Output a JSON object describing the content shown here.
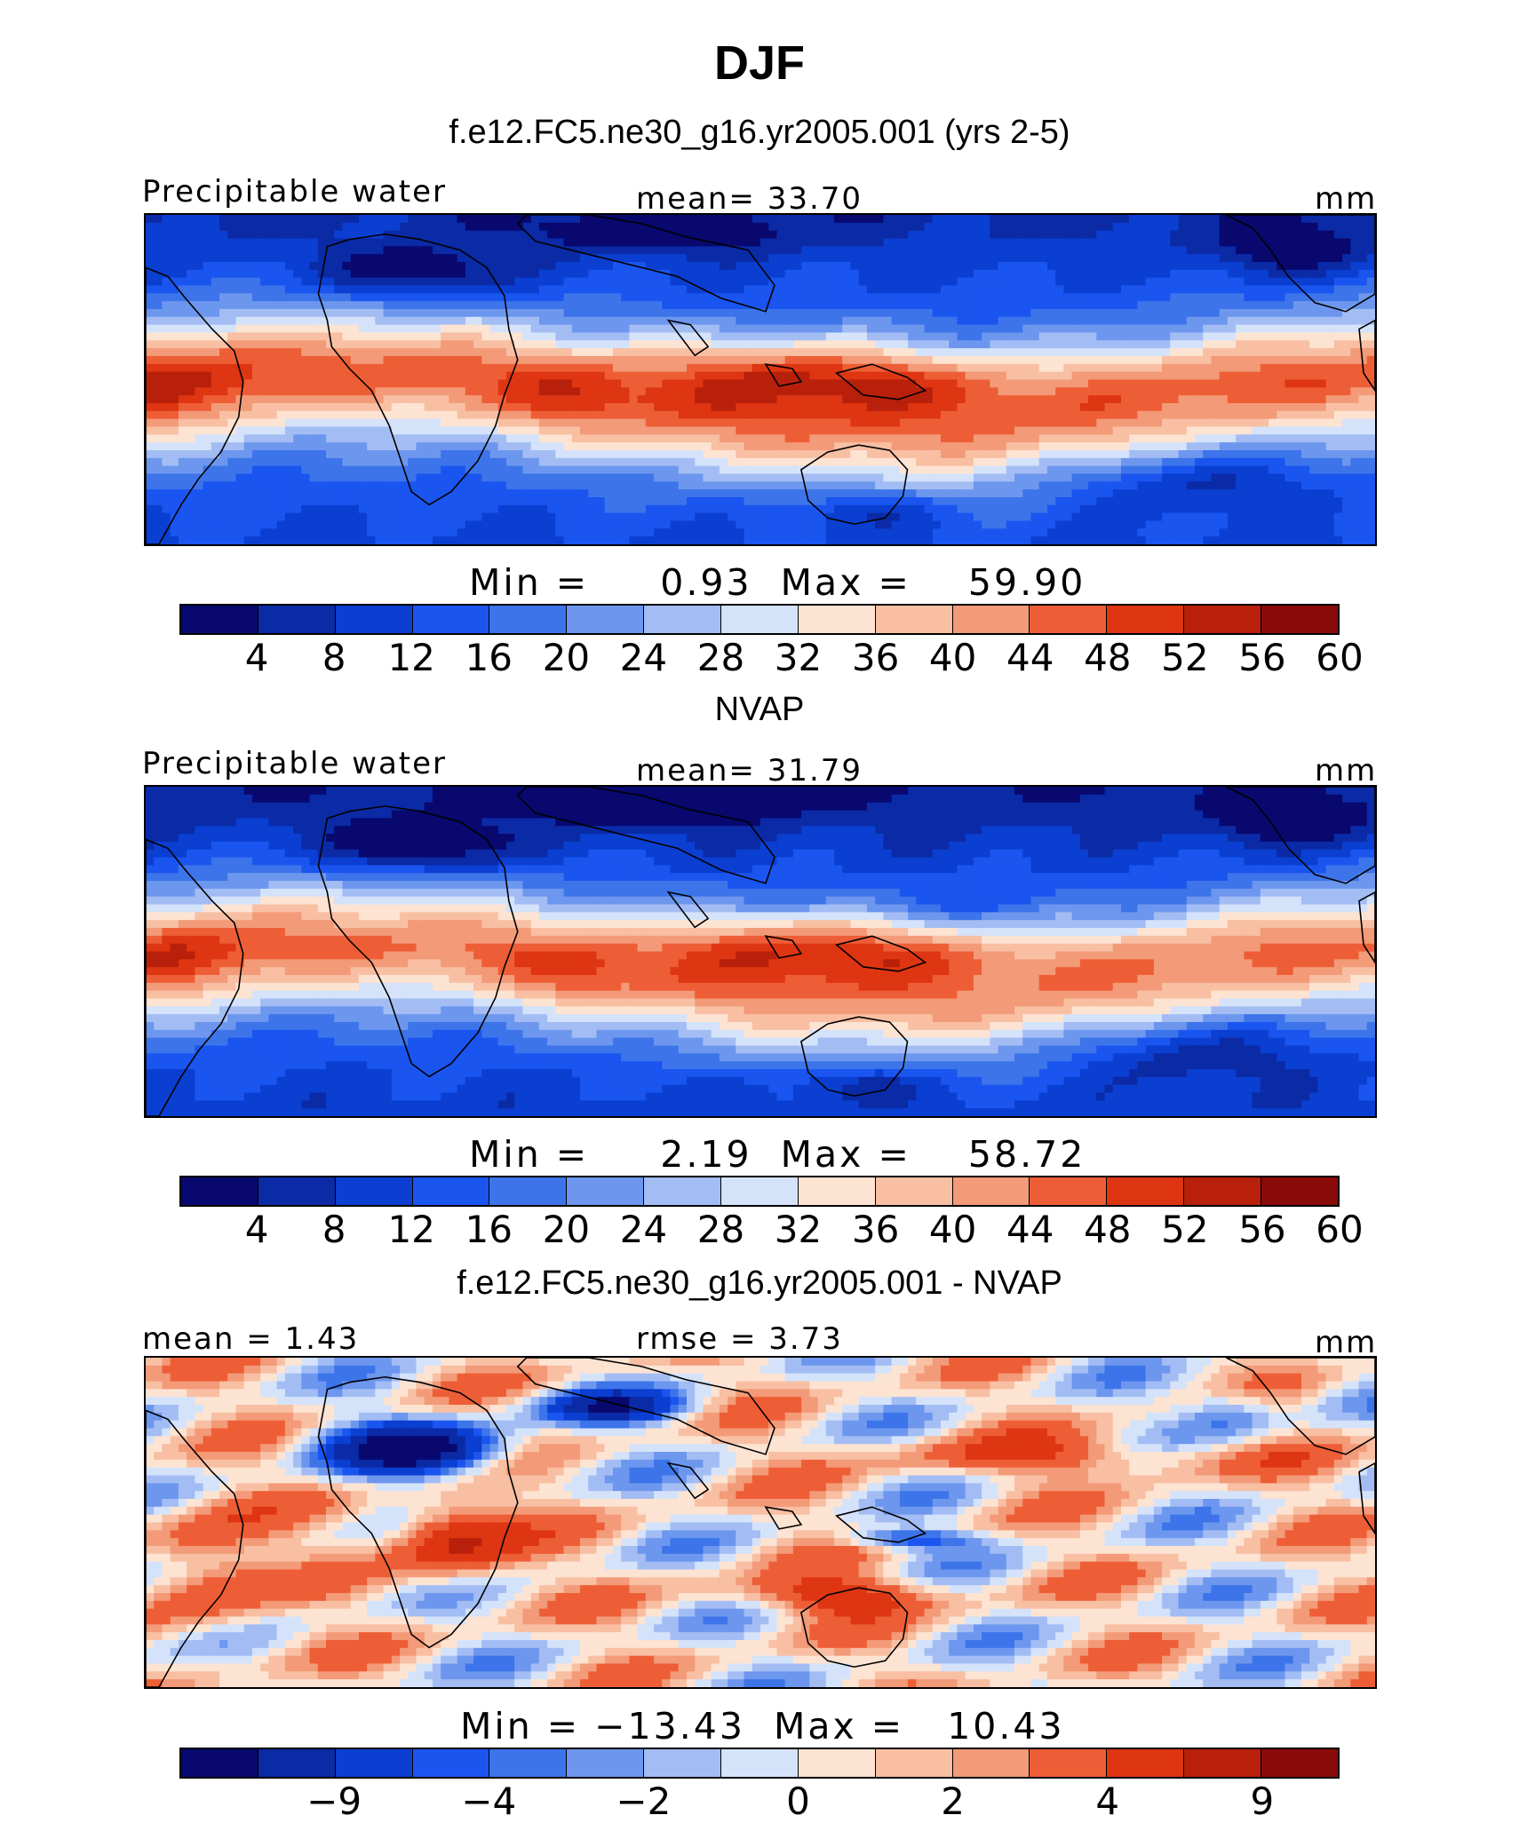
{
  "figure": {
    "season": "DJF",
    "case_title": "f.e12.FC5.ne30_g16.yr2005.001 (yrs 2-5)"
  },
  "panels": [
    {
      "id": "model",
      "subtitle": "",
      "left_label": "Precipitable water",
      "center_label": "mean=   33.70",
      "right_label": "mm",
      "minmax": "Min =     0.93  Max =    59.90",
      "colorbar_ticks": [
        "4",
        "8",
        "12",
        "16",
        "20",
        "24",
        "28",
        "32",
        "36",
        "40",
        "44",
        "48",
        "52",
        "56",
        "60"
      ],
      "pattern": "model"
    },
    {
      "id": "obs",
      "subtitle": "NVAP",
      "left_label": "Precipitable water",
      "center_label": "mean=   31.79",
      "right_label": "mm",
      "minmax": "Min =     2.19  Max =    58.72",
      "colorbar_ticks": [
        "4",
        "8",
        "12",
        "16",
        "20",
        "24",
        "28",
        "32",
        "36",
        "40",
        "44",
        "48",
        "52",
        "56",
        "60"
      ],
      "pattern": "obs"
    },
    {
      "id": "diff",
      "subtitle": "f.e12.FC5.ne30_g16.yr2005.001 - NVAP",
      "left_label": "mean =    1.43",
      "center_label": "rmse =    3.73",
      "right_label": "mm",
      "minmax": "Min = −13.43  Max =   10.43",
      "colorbar_ticks": [
        "−9",
        "−4",
        "−2",
        "0",
        "2",
        "4",
        "9"
      ],
      "pattern": "diff"
    }
  ],
  "colors": {
    "colorbar": [
      "#08086e",
      "#0a2aa6",
      "#0b3fd1",
      "#1a55f0",
      "#3d74ea",
      "#6d97ee",
      "#a3bdf4",
      "#d4e3fa",
      "#fde3d2",
      "#f8bfa3",
      "#f39a78",
      "#ee5e36",
      "#de3512",
      "#b8200b",
      "#8a0a0a"
    ],
    "diff_colorbar": [
      "#08086e",
      "#0a2aa6",
      "#0b3fd1",
      "#1a55f0",
      "#3d74ea",
      "#6d97ee",
      "#a3bdf4",
      "#d4e3fa",
      "#fde3d2",
      "#f8bfa3",
      "#f39a78",
      "#ee5e36",
      "#de3512",
      "#b8200b",
      "#8a0a0a"
    ]
  }
}
